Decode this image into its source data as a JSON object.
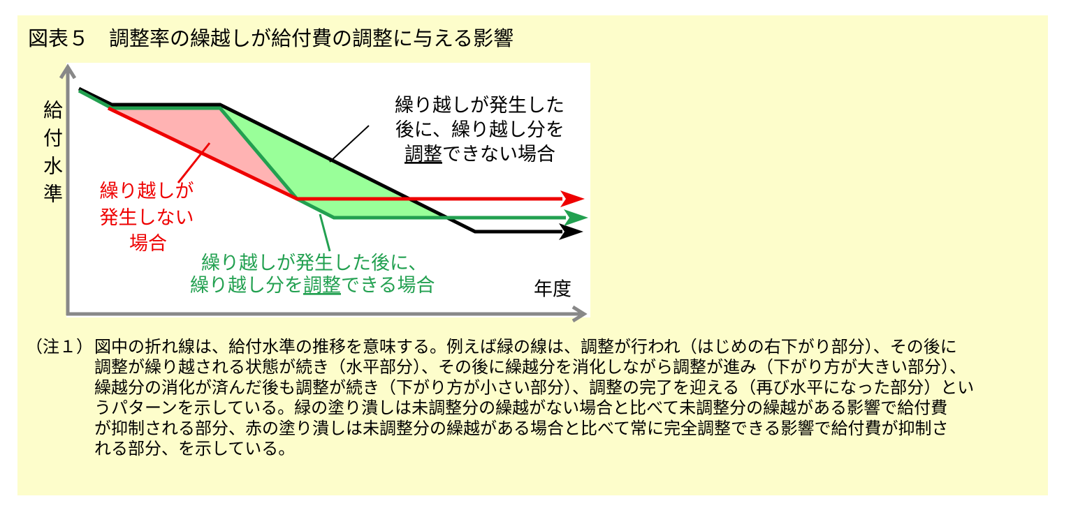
{
  "title": "図表５　調整率の繰越しが給付費の調整に与える影響",
  "axes": {
    "y_label": "給付水準",
    "x_label": "年度"
  },
  "labels": {
    "black": {
      "lines": [
        [
          "繰り越しが発生した"
        ],
        [
          "後に、繰り越し分を"
        ],
        [
          "調整",
          "できない場合"
        ]
      ]
    },
    "red": {
      "lines": [
        [
          "繰り越しが"
        ],
        [
          "発生しない"
        ],
        [
          "場合"
        ]
      ]
    },
    "green": {
      "lines": [
        [
          "繰り越しが発生した後に、"
        ],
        [
          "繰り越し分を",
          "調整",
          "できる場合"
        ]
      ]
    }
  },
  "note": {
    "prefix": "（注１）",
    "lines": [
      "図中の折れ線は、給付水準の推移を意味する。例えば緑の線は、調整が行われ（はじめの右下がり部分）、その後に",
      "調整が繰り越される状態が続き（水平部分）、その後に繰越分を消化しながら調整が進み（下がり方が大きい部分）、",
      "繰越分の消化が済んだ後も調整が続き（下がり方が小さい部分）、調整の完了を迎える（再び水平になった部分）とい",
      "うパターンを示している。緑の塗り潰しは未調整分の繰越がない場合と比べて未調整分の繰越がある影響で給付費",
      "が抑制される部分、赤の塗り潰しは未調整分の繰越がある場合と比べて常に完全調整できる影響で給付費が抑制さ",
      "れる部分、を示している。"
    ]
  }
}
